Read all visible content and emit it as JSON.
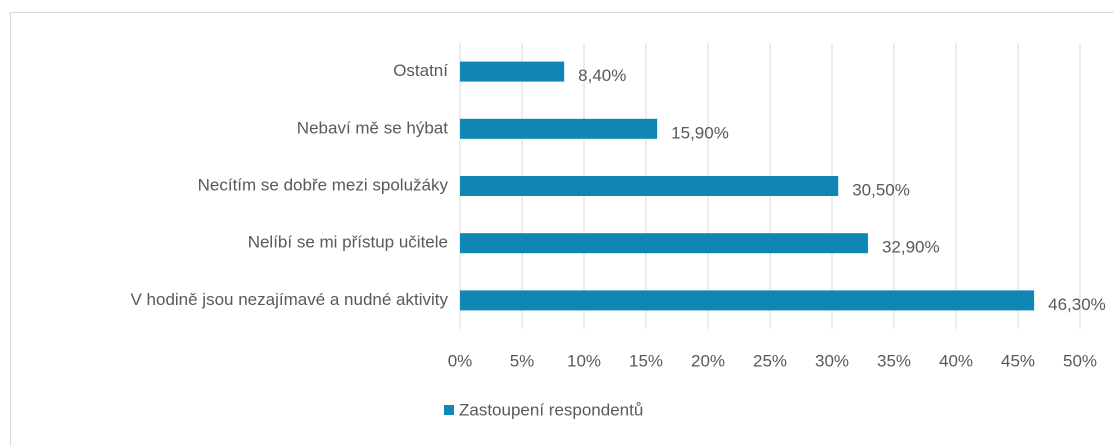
{
  "chart_data": {
    "type": "bar",
    "orientation": "horizontal",
    "categories": [
      "Ostatní",
      "Nebaví mě se hýbat",
      "Necítím se dobře mezi spolužáky",
      "Nelíbí se mi přístup učitele",
      "V hodině jsou nezajímavé a nudné aktivity"
    ],
    "series": [
      {
        "name": "Zastoupení respondentů",
        "color": "#0f86b3",
        "values": [
          8.4,
          15.9,
          30.5,
          32.9,
          46.3
        ],
        "value_labels": [
          "8,40%",
          "15,90%",
          "30,50%",
          "32,90%",
          "46,30%"
        ]
      }
    ],
    "xlim": [
      0,
      50
    ],
    "xticks": [
      {
        "value": 0,
        "label": "0%"
      },
      {
        "value": 5,
        "label": "5%"
      },
      {
        "value": 10,
        "label": "10%"
      },
      {
        "value": 15,
        "label": "15%"
      },
      {
        "value": 20,
        "label": "20%"
      },
      {
        "value": 25,
        "label": "25%"
      },
      {
        "value": 30,
        "label": "30%"
      },
      {
        "value": 35,
        "label": "35%"
      },
      {
        "value": 40,
        "label": "40%"
      },
      {
        "value": 45,
        "label": "45%"
      },
      {
        "value": 50,
        "label": "50%"
      }
    ],
    "grid": true,
    "legend": "bottom"
  }
}
